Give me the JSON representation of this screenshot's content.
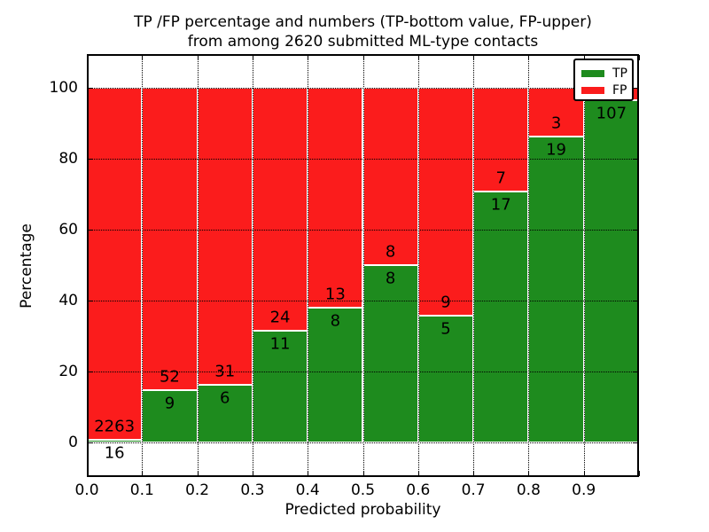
{
  "chart": {
    "title_line1": "TP /FP percentage and numbers (TP-bottom value, FP-upper)",
    "title_line2": "from among 2620 submitted ML-type contacts",
    "xlabel": "Predicted probability",
    "ylabel": "Percentage",
    "legend": {
      "tp_label": "TP",
      "fp_label": "FP"
    }
  },
  "chart_data": {
    "type": "bar",
    "stacked": true,
    "stack_mode": "percentage_of_bin_total",
    "title": "TP /FP percentage and numbers (TP-bottom value, FP-upper) from among 2620 submitted ML-type contacts",
    "xlabel": "Predicted probability",
    "ylabel": "Percentage",
    "total_contacts": 2620,
    "bins": [
      [
        0.0,
        0.1
      ],
      [
        0.1,
        0.2
      ],
      [
        0.2,
        0.3
      ],
      [
        0.3,
        0.4
      ],
      [
        0.4,
        0.5
      ],
      [
        0.5,
        0.6
      ],
      [
        0.6,
        0.7
      ],
      [
        0.7,
        0.8
      ],
      [
        0.8,
        0.9
      ],
      [
        0.9,
        1.0
      ]
    ],
    "x_tick_labels": [
      "0.0",
      "0.1",
      "0.2",
      "0.3",
      "0.4",
      "0.5",
      "0.6",
      "0.7",
      "0.8",
      "0.9"
    ],
    "y_ticks": [
      0,
      20,
      40,
      60,
      80,
      100
    ],
    "xlim": [
      0.0,
      1.0
    ],
    "ylim": [
      -9.75,
      109.25
    ],
    "grid": "dotted",
    "legend_position": "upper right",
    "colors": {
      "tp": "#1e8b1e",
      "fp": "#fb1c1c"
    },
    "series": [
      {
        "name": "TP",
        "values": [
          16,
          9,
          6,
          11,
          8,
          8,
          5,
          17,
          19,
          107
        ]
      },
      {
        "name": "FP",
        "values": [
          2263,
          52,
          31,
          24,
          13,
          8,
          9,
          7,
          3,
          4
        ]
      }
    ],
    "bar_labels": [
      {
        "tp": "16",
        "fp": "2263"
      },
      {
        "tp": "9",
        "fp": "52"
      },
      {
        "tp": "6",
        "fp": "31"
      },
      {
        "tp": "11",
        "fp": "24"
      },
      {
        "tp": "8",
        "fp": "13"
      },
      {
        "tp": "8",
        "fp": "8"
      },
      {
        "tp": "5",
        "fp": "9"
      },
      {
        "tp": "17",
        "fp": "7"
      },
      {
        "tp": "19",
        "fp": "3"
      },
      {
        "tp": "107",
        "fp": ""
      }
    ]
  }
}
